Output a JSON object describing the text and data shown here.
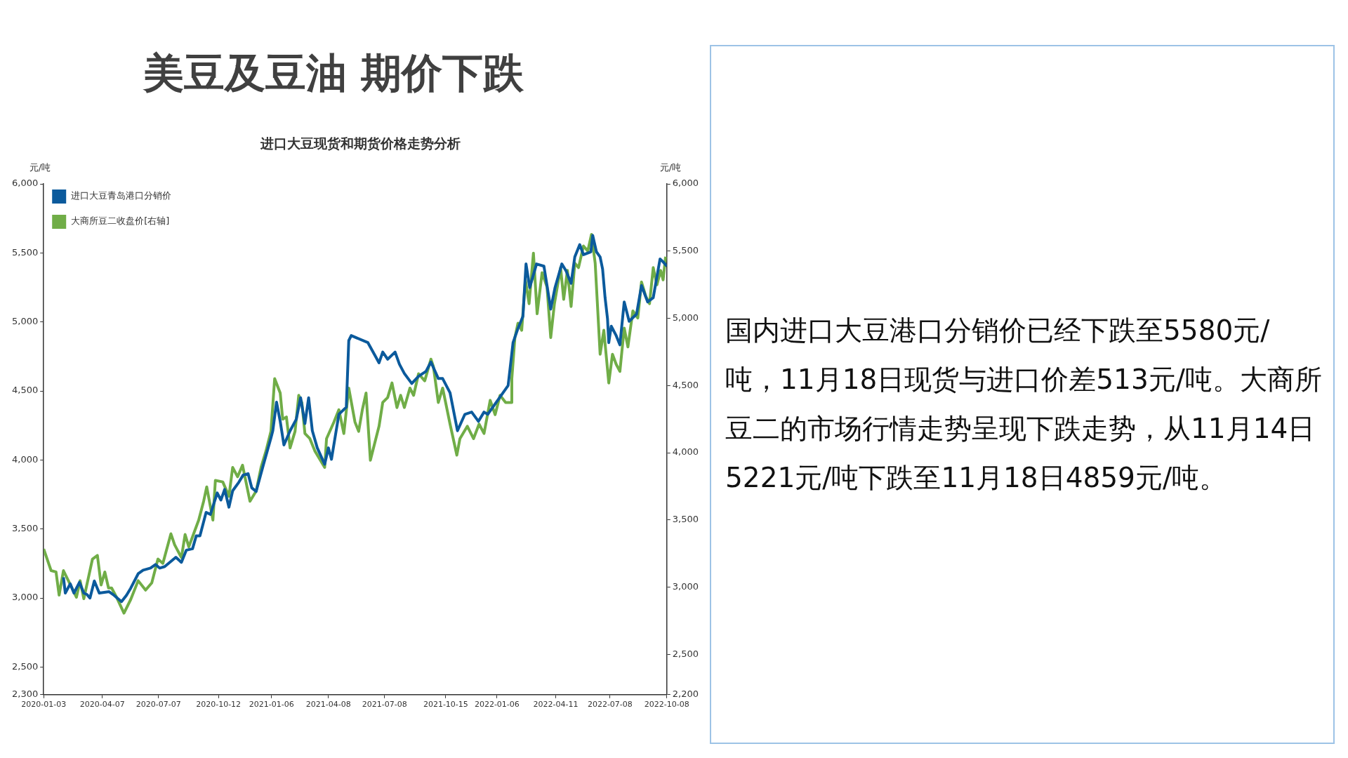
{
  "chart_data": {
    "type": "line",
    "title": "美豆及豆油 期价下跌",
    "subtitle": "进口大豆现货和期货价格走势分析",
    "ylabel": "元/吨",
    "y2label": "元/吨",
    "annotations": [
      "国内进口大豆港口分销价已经下跌至5580元/吨，11月18日现货与进口价差513元/吨。大商所豆二的市场行情走势呈现下跌走势，从11月14日5221元/吨下跌至11月18日4859元/吨。"
    ],
    "legend": "top left",
    "grid": false,
    "xlim": [
      "2020-01-03",
      "2022-10-08"
    ],
    "xticks": [
      "2020-01-03",
      "2020-04-07",
      "2020-07-07",
      "2020-10-12",
      "2021-01-06",
      "2021-04-08",
      "2021-07-08",
      "2021-10-15",
      "2022-01-06",
      "2022-04-11",
      "2022-07-08",
      "2022-10-08"
    ],
    "ylim": [
      2300,
      6000
    ],
    "yticks": [
      {
        "value": 2300,
        "label": "2,300"
      },
      {
        "value": 2500,
        "label": "2,500"
      },
      {
        "value": 3000,
        "label": "3,000"
      },
      {
        "value": 3500,
        "label": "3,500"
      },
      {
        "value": 4000,
        "label": "4,000"
      },
      {
        "value": 4500,
        "label": "4,500"
      },
      {
        "value": 5000,
        "label": "5,000"
      },
      {
        "value": 5500,
        "label": "5,500"
      },
      {
        "value": 6000,
        "label": "6,000"
      }
    ],
    "y2lim": [
      2200,
      6000
    ],
    "y2ticks": [
      {
        "value": 2200,
        "label": "2,200"
      },
      {
        "value": 2500,
        "label": "2,500"
      },
      {
        "value": 3000,
        "label": "3,000"
      },
      {
        "value": 3500,
        "label": "3,500"
      },
      {
        "value": 4000,
        "label": "4,000"
      },
      {
        "value": 4500,
        "label": "4,500"
      },
      {
        "value": 5000,
        "label": "5,000"
      },
      {
        "value": 5500,
        "label": "5,500"
      },
      {
        "value": 6000,
        "label": "6,000"
      }
    ],
    "series": [
      {
        "name": "进口大豆青岛港口分销价",
        "color": "#0b5a9c",
        "x": [
          "2020-02-04",
          "2020-02-07",
          "2020-02-15",
          "2020-02-21",
          "2020-03-01",
          "2020-03-08",
          "2020-03-13",
          "2020-03-18",
          "2020-03-25",
          "2020-04-02",
          "2020-04-18",
          "2020-04-26",
          "2020-05-08",
          "2020-05-16",
          "2020-05-23",
          "2020-06-04",
          "2020-06-12",
          "2020-06-24",
          "2020-07-02",
          "2020-07-09",
          "2020-07-17",
          "2020-08-04",
          "2020-08-13",
          "2020-08-21",
          "2020-08-31",
          "2020-09-06",
          "2020-09-12",
          "2020-09-22",
          "2020-09-29",
          "2020-10-10",
          "2020-10-16",
          "2020-10-22",
          "2020-10-29",
          "2020-11-04",
          "2020-11-14",
          "2020-11-21",
          "2020-11-29",
          "2020-12-05",
          "2020-12-12",
          "2020-12-24",
          "2021-01-05",
          "2021-01-08",
          "2021-01-14",
          "2021-01-20",
          "2021-01-26",
          "2021-02-05",
          "2021-02-15",
          "2021-02-22",
          "2021-03-01",
          "2021-03-07",
          "2021-03-13",
          "2021-03-21",
          "2021-04-02",
          "2021-04-08",
          "2021-04-13",
          "2021-04-25",
          "2021-05-07",
          "2021-05-11",
          "2021-05-15",
          "2021-06-11",
          "2021-06-29",
          "2021-07-05",
          "2021-07-13",
          "2021-07-25",
          "2021-08-01",
          "2021-08-09",
          "2021-08-21",
          "2021-09-01",
          "2021-09-13",
          "2021-09-21",
          "2021-10-03",
          "2021-10-10",
          "2021-10-22",
          "2021-11-03",
          "2021-11-15",
          "2021-11-26",
          "2021-12-07",
          "2021-12-16",
          "2021-12-22",
          "2022-01-24",
          "2022-02-01",
          "2022-02-09",
          "2022-02-17",
          "2022-02-22",
          "2022-02-28",
          "2022-03-11",
          "2022-03-23",
          "2022-03-28",
          "2022-04-03",
          "2022-04-10",
          "2022-04-21",
          "2022-04-28",
          "2022-05-06",
          "2022-05-12",
          "2022-05-20",
          "2022-05-26",
          "2022-06-07",
          "2022-06-10",
          "2022-06-16",
          "2022-06-22",
          "2022-06-26",
          "2022-06-30",
          "2022-07-04",
          "2022-07-06",
          "2022-07-10",
          "2022-07-18",
          "2022-07-24",
          "2022-07-31",
          "2022-08-08",
          "2022-08-20",
          "2022-08-28",
          "2022-09-07",
          "2022-09-16",
          "2022-09-27",
          "2022-10-02",
          "2022-10-08"
        ],
        "values": [
          3150,
          3036,
          3103,
          3036,
          3114,
          3036,
          3026,
          3000,
          3124,
          3036,
          3046,
          3020,
          2974,
          3020,
          3072,
          3176,
          3202,
          3217,
          3243,
          3217,
          3228,
          3295,
          3259,
          3347,
          3357,
          3450,
          3450,
          3621,
          3606,
          3761,
          3710,
          3787,
          3658,
          3777,
          3839,
          3891,
          3901,
          3798,
          3772,
          3969,
          4160,
          4212,
          4419,
          4280,
          4109,
          4212,
          4295,
          4451,
          4264,
          4451,
          4212,
          4088,
          3969,
          4088,
          4005,
          4331,
          4383,
          4865,
          4901,
          4850,
          4704,
          4782,
          4730,
          4782,
          4694,
          4627,
          4554,
          4606,
          4642,
          4710,
          4590,
          4590,
          4487,
          4212,
          4331,
          4347,
          4280,
          4347,
          4331,
          4539,
          4850,
          4953,
          5041,
          5420,
          5249,
          5420,
          5404,
          5264,
          5093,
          5249,
          5420,
          5368,
          5280,
          5471,
          5560,
          5487,
          5508,
          5627,
          5508,
          5471,
          5383,
          5176,
          5021,
          4850,
          4969,
          4901,
          4834,
          5145,
          5005,
          5057,
          5264,
          5145,
          5176,
          5456,
          5435,
          5404
        ]
      },
      {
        "name": "大商所豆二收盘价[右轴]",
        "color": "#70ad47",
        "axis": "y2",
        "x": [
          "2020-01-03",
          "2020-01-15",
          "2020-01-23",
          "2020-01-28",
          "2020-02-04",
          "2020-02-12",
          "2020-02-25",
          "2020-03-02",
          "2020-03-08",
          "2020-03-22",
          "2020-03-30",
          "2020-04-05",
          "2020-04-11",
          "2020-04-17",
          "2020-04-22",
          "2020-04-30",
          "2020-05-12",
          "2020-05-23",
          "2020-06-04",
          "2020-06-16",
          "2020-06-26",
          "2020-07-06",
          "2020-07-14",
          "2020-07-27",
          "2020-08-02",
          "2020-08-13",
          "2020-08-19",
          "2020-08-25",
          "2020-09-10",
          "2020-09-18",
          "2020-09-23",
          "2020-10-03",
          "2020-10-07",
          "2020-10-19",
          "2020-10-29",
          "2020-11-04",
          "2020-11-12",
          "2020-11-20",
          "2020-12-02",
          "2020-12-12",
          "2020-12-20",
          "2020-12-28",
          "2021-01-05",
          "2021-01-11",
          "2021-01-20",
          "2021-01-24",
          "2021-01-30",
          "2021-02-05",
          "2021-02-13",
          "2021-02-19",
          "2021-02-24",
          "2021-03-01",
          "2021-03-09",
          "2021-03-17",
          "2021-04-02",
          "2021-04-05",
          "2021-04-17",
          "2021-04-25",
          "2021-05-03",
          "2021-05-11",
          "2021-05-21",
          "2021-05-27",
          "2021-06-02",
          "2021-06-08",
          "2021-06-15",
          "2021-06-29",
          "2021-07-05",
          "2021-07-13",
          "2021-07-20",
          "2021-07-28",
          "2021-08-03",
          "2021-08-09",
          "2021-08-18",
          "2021-08-24",
          "2021-09-01",
          "2021-09-11",
          "2021-09-21",
          "2021-09-25",
          "2021-10-03",
          "2021-10-10",
          "2021-10-22",
          "2021-11-02",
          "2021-11-07",
          "2021-11-19",
          "2021-11-29",
          "2021-12-08",
          "2021-12-16",
          "2021-12-26",
          "2022-01-03",
          "2022-01-11",
          "2022-01-20",
          "2022-01-29",
          "2022-01-30",
          "2022-02-04",
          "2022-02-09",
          "2022-02-15",
          "2022-02-21",
          "2022-02-27",
          "2022-03-06",
          "2022-03-12",
          "2022-03-20",
          "2022-03-28",
          "2022-04-03",
          "2022-04-09",
          "2022-04-19",
          "2022-04-24",
          "2022-04-30",
          "2022-05-06",
          "2022-05-12",
          "2022-05-18",
          "2022-05-26",
          "2022-06-02",
          "2022-06-08",
          "2022-06-14",
          "2022-06-22",
          "2022-06-28",
          "2022-07-06",
          "2022-07-12",
          "2022-07-18",
          "2022-07-24",
          "2022-07-31",
          "2022-08-06",
          "2022-08-14",
          "2022-08-22",
          "2022-08-28",
          "2022-09-04",
          "2022-09-10",
          "2022-09-16",
          "2022-09-22",
          "2022-09-28",
          "2022-10-02",
          "2022-10-06"
        ],
        "values": [
          3284,
          3123,
          3113,
          2941,
          3123,
          3048,
          2925,
          3048,
          2914,
          3209,
          3236,
          3016,
          3113,
          2994,
          2994,
          2925,
          2807,
          2909,
          3048,
          2978,
          3032,
          3209,
          3177,
          3397,
          3316,
          3220,
          3392,
          3300,
          3499,
          3639,
          3746,
          3499,
          3794,
          3783,
          3676,
          3891,
          3821,
          3907,
          3639,
          3714,
          3891,
          4014,
          4159,
          4551,
          4444,
          4250,
          4266,
          4036,
          4159,
          4427,
          4374,
          4143,
          4105,
          4014,
          3891,
          4105,
          4229,
          4320,
          4143,
          4481,
          4229,
          4159,
          4320,
          4444,
          3944,
          4197,
          4374,
          4411,
          4519,
          4336,
          4427,
          4336,
          4481,
          4427,
          4588,
          4535,
          4696,
          4642,
          4374,
          4481,
          4213,
          3982,
          4105,
          4197,
          4105,
          4213,
          4143,
          4390,
          4283,
          4427,
          4374,
          4374,
          4551,
          4857,
          4964,
          4911,
          5286,
          5109,
          5485,
          5034,
          5340,
          5233,
          4857,
          5109,
          5377,
          5141,
          5356,
          5088,
          5410,
          5377,
          5538,
          5501,
          5624,
          5410,
          4733,
          4911,
          4519,
          4733,
          4658,
          4605,
          4927,
          4787,
          5055,
          5002,
          5270,
          5163,
          5109,
          5377,
          5249,
          5356,
          5286,
          5458
        ]
      }
    ]
  }
}
